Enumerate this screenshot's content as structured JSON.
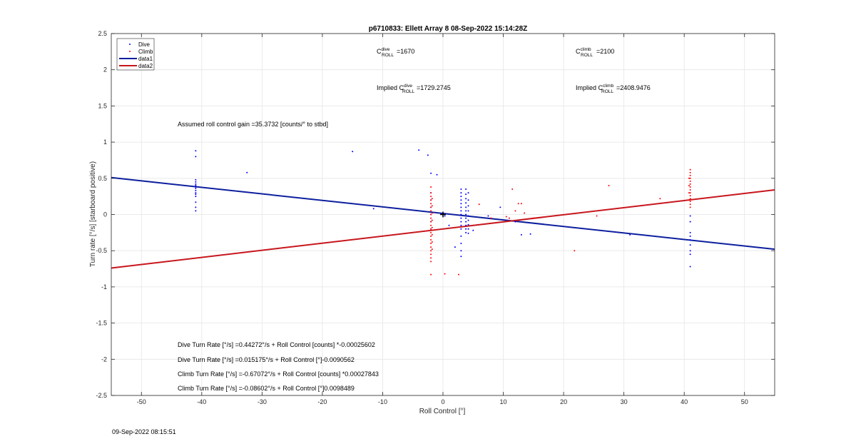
{
  "chart_data": {
    "type": "scatter",
    "title": "p6710833: Ellett Array 8 08-Sep-2022 15:14:28Z",
    "xlabel": "Roll Control [°]",
    "ylabel": "Turn rate [°/s] [starboard positive)",
    "xlim": [
      -55,
      55
    ],
    "ylim": [
      -2.5,
      2.5
    ],
    "xticks": [
      -50,
      -40,
      -30,
      -20,
      -10,
      0,
      10,
      20,
      30,
      40,
      50
    ],
    "yticks": [
      -2.5,
      -2,
      -1.5,
      -1,
      -0.5,
      0,
      0.5,
      1,
      1.5,
      2,
      2.5
    ],
    "grid": true,
    "legend_position": "top-left",
    "legend": [
      {
        "label": "Dive",
        "kind": "marker",
        "color": "#0000ff"
      },
      {
        "label": "Climb",
        "kind": "marker",
        "color": "#ff0000"
      },
      {
        "label": "data1",
        "kind": "line",
        "color": "#0d1f9e"
      },
      {
        "label": "data2",
        "kind": "line",
        "color": "#c8161d"
      }
    ],
    "series": [
      {
        "name": "Dive",
        "color": "#0000ff",
        "points": [
          [
            -41,
            0.88
          ],
          [
            -41,
            0.8
          ],
          [
            -41,
            0.48
          ],
          [
            -41,
            0.45
          ],
          [
            -41,
            0.42
          ],
          [
            -41,
            0.4
          ],
          [
            -41,
            0.38
          ],
          [
            -41,
            0.36
          ],
          [
            -41,
            0.33
          ],
          [
            -41,
            0.3
          ],
          [
            -41,
            0.28
          ],
          [
            -41,
            0.25
          ],
          [
            -41,
            0.17
          ],
          [
            -41,
            0.1
          ],
          [
            -41,
            0.05
          ],
          [
            -32.5,
            0.58
          ],
          [
            -15,
            0.87
          ],
          [
            -11.5,
            0.08
          ],
          [
            -4,
            0.89
          ],
          [
            -2.5,
            0.82
          ],
          [
            -2,
            0.57
          ],
          [
            -1,
            0.55
          ],
          [
            -2,
            0.3
          ],
          [
            -2,
            0.2
          ],
          [
            -2,
            0.1
          ],
          [
            -2,
            0.0
          ],
          [
            -2,
            -0.1
          ],
          [
            -2,
            -0.2
          ],
          [
            0,
            0.0
          ],
          [
            0.3,
            -0.02
          ],
          [
            -0.3,
            0.01
          ],
          [
            1,
            -0.15
          ],
          [
            2,
            -0.45
          ],
          [
            3,
            0.35
          ],
          [
            3,
            0.3
          ],
          [
            3,
            0.25
          ],
          [
            3,
            0.2
          ],
          [
            3,
            0.15
          ],
          [
            3,
            0.1
          ],
          [
            3,
            0.05
          ],
          [
            3,
            0.0
          ],
          [
            3,
            -0.05
          ],
          [
            3,
            -0.1
          ],
          [
            3,
            -0.15
          ],
          [
            3,
            -0.2
          ],
          [
            3,
            -0.3
          ],
          [
            3,
            -0.4
          ],
          [
            3,
            -0.5
          ],
          [
            3,
            -0.58
          ],
          [
            3.8,
            0.35
          ],
          [
            3.8,
            0.28
          ],
          [
            3.8,
            0.22
          ],
          [
            3.8,
            0.16
          ],
          [
            3.8,
            0.1
          ],
          [
            3.8,
            0.05
          ],
          [
            3.8,
            0.0
          ],
          [
            3.8,
            -0.05
          ],
          [
            3.8,
            -0.1
          ],
          [
            3.8,
            -0.15
          ],
          [
            3.8,
            -0.2
          ],
          [
            3.8,
            -0.25
          ],
          [
            4.2,
            0.3
          ],
          [
            4.2,
            0.2
          ],
          [
            4.2,
            0.12
          ],
          [
            4.2,
            0.05
          ],
          [
            4.2,
            -0.02
          ],
          [
            4.2,
            -0.08
          ],
          [
            4.2,
            -0.14
          ],
          [
            4.2,
            -0.2
          ],
          [
            4.2,
            -0.26
          ],
          [
            5,
            -0.22
          ],
          [
            7.5,
            -0.02
          ],
          [
            9.5,
            0.1
          ],
          [
            12,
            -0.1
          ],
          [
            13,
            -0.28
          ],
          [
            14.5,
            -0.27
          ],
          [
            31,
            -0.28
          ],
          [
            41,
            -0.02
          ],
          [
            41,
            -0.1
          ],
          [
            41,
            -0.25
          ],
          [
            41,
            -0.3
          ],
          [
            41,
            -0.35
          ],
          [
            41,
            -0.42
          ],
          [
            41,
            -0.5
          ],
          [
            41,
            -0.55
          ],
          [
            41,
            -0.72
          ]
        ]
      },
      {
        "name": "Climb",
        "color": "#ff0000",
        "points": [
          [
            -2,
            0.38
          ],
          [
            -2,
            0.3
          ],
          [
            -2,
            0.25
          ],
          [
            -2,
            0.2
          ],
          [
            -2,
            0.15
          ],
          [
            -2,
            0.1
          ],
          [
            -2,
            0.05
          ],
          [
            -2,
            0.0
          ],
          [
            -2,
            -0.05
          ],
          [
            -2,
            -0.1
          ],
          [
            -2,
            -0.15
          ],
          [
            -2,
            -0.2
          ],
          [
            -2,
            -0.25
          ],
          [
            -2,
            -0.3
          ],
          [
            -2,
            -0.35
          ],
          [
            -2,
            -0.4
          ],
          [
            -2,
            -0.45
          ],
          [
            -2,
            -0.5
          ],
          [
            -2,
            -0.55
          ],
          [
            -2,
            -0.6
          ],
          [
            -2,
            -0.65
          ],
          [
            -1.8,
            0.22
          ],
          [
            -1.8,
            0.12
          ],
          [
            -1.8,
            0.02
          ],
          [
            -1.8,
            -0.08
          ],
          [
            -1.8,
            -0.18
          ],
          [
            -1.8,
            -0.28
          ],
          [
            -1.8,
            -0.38
          ],
          [
            -1.8,
            -0.48
          ],
          [
            -2,
            -0.83
          ],
          [
            0.3,
            -0.82
          ],
          [
            2.6,
            -0.83
          ],
          [
            6,
            0.14
          ],
          [
            8,
            -0.05
          ],
          [
            10.5,
            -0.03
          ],
          [
            11,
            -0.05
          ],
          [
            11.5,
            0.35
          ],
          [
            12,
            0.05
          ],
          [
            12.5,
            0.15
          ],
          [
            13,
            0.15
          ],
          [
            13.5,
            0.02
          ],
          [
            15,
            -0.05
          ],
          [
            21.8,
            -0.5
          ],
          [
            25.5,
            -0.02
          ],
          [
            27.5,
            0.4
          ],
          [
            36,
            0.22
          ],
          [
            41,
            0.62
          ],
          [
            41,
            0.58
          ],
          [
            41,
            0.54
          ],
          [
            41,
            0.5
          ],
          [
            41,
            0.46
          ],
          [
            41,
            0.42
          ],
          [
            41,
            0.38
          ],
          [
            41,
            0.34
          ],
          [
            41,
            0.3
          ],
          [
            41,
            0.26
          ],
          [
            41,
            0.22
          ],
          [
            41,
            0.18
          ],
          [
            41,
            0.14
          ],
          [
            41,
            0.1
          ],
          [
            40.8,
            0.5
          ],
          [
            40.8,
            0.4
          ],
          [
            40.8,
            0.3
          ],
          [
            40.8,
            0.2
          ]
        ]
      },
      {
        "name": "data1",
        "color": "#0d1f9e",
        "line": [
          [
            -55,
            0.51
          ],
          [
            55,
            -0.48
          ]
        ]
      },
      {
        "name": "data2",
        "color": "#c8161d",
        "line": [
          [
            -55,
            -0.74
          ],
          [
            55,
            0.34
          ]
        ]
      }
    ],
    "marker_plus": [
      0,
      0
    ],
    "annotations": {
      "c_dive": {
        "base": "C",
        "sup": "dive",
        "sub": "ROLL",
        "value": "=1670"
      },
      "c_climb": {
        "base": "C",
        "sup": "climb",
        "sub": "ROLL",
        "value": "=2100"
      },
      "implied_dive": {
        "prefix": "Implied C",
        "sup": "dive",
        "sub": "ROLL",
        "value": "=1729.2745"
      },
      "implied_climb": {
        "prefix": "Implied C",
        "sup": "climb",
        "sub": "ROLL",
        "value": "=2408.9476"
      },
      "gain": "Assumed roll control gain =35.3732 [counts/° to stbd]",
      "eq1": "Dive Turn Rate [°/s] =0.44272°/s + Roll Control [counts] *-0.00025602",
      "eq2": "Dive Turn Rate [°/s] =0.015175°/s + Roll Control [°]-0.0090562",
      "eq3": "Climb Turn Rate [°/s] =-0.67072°/s + Roll Control [counts] *0.00027843",
      "eq4": "Climb Turn Rate [°/s] =-0.08602°/s + Roll Control [°]0.0098489"
    }
  },
  "timestamp": "09-Sep-2022 08:15:51"
}
